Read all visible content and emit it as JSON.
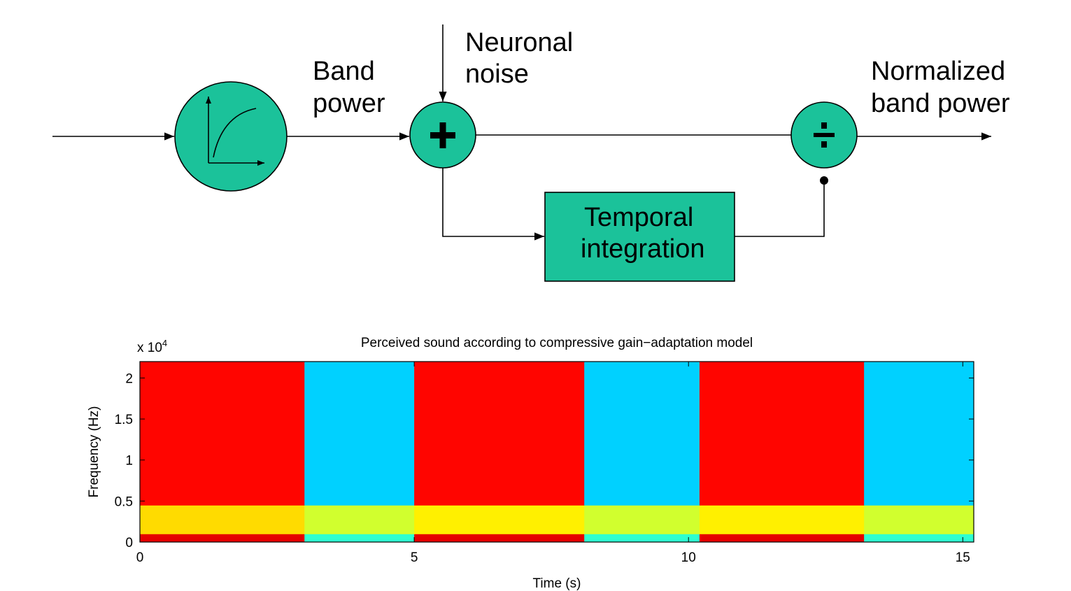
{
  "diagram": {
    "labels": {
      "band_power": [
        "Band",
        "power"
      ],
      "neuronal_noise": [
        "Neuronal",
        "noise"
      ],
      "normalized_band_power": [
        "Normalized",
        "band power"
      ],
      "temporal_integration": [
        "Temporal",
        "integration"
      ]
    }
  },
  "chart_data": {
    "type": "spectrogram",
    "title": "Perceived sound according to compressive gain−adaptation model",
    "xlabel": "Time (s)",
    "ylabel": "Frequency (Hz)",
    "y_scale_label": "x 10",
    "y_scale_exponent": "4",
    "colormap": "jet",
    "x_edges": [
      0,
      3.0,
      5.0,
      8.1,
      10.2,
      13.2,
      15.2
    ],
    "y_edges": [
      0,
      1000,
      4500,
      22000
    ],
    "values": [
      [
        0.9,
        0.42,
        0.9,
        0.42,
        0.9,
        0.42
      ],
      [
        0.66,
        0.58,
        0.64,
        0.58,
        0.64,
        0.58
      ],
      [
        0.87,
        0.33,
        0.87,
        0.33,
        0.87,
        0.33
      ]
    ],
    "xlim": [
      0,
      15.2
    ],
    "ylim": [
      0,
      22000
    ],
    "xticks": [
      0,
      5,
      10,
      15
    ],
    "yticks": [
      0,
      {
        "value": 5000,
        "label": "0.5"
      },
      {
        "value": 10000,
        "label": "1"
      },
      {
        "value": 15000,
        "label": "1.5"
      },
      {
        "value": 20000,
        "label": "2"
      }
    ]
  }
}
